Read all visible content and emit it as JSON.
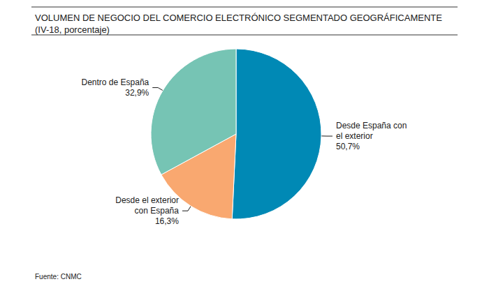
{
  "chart_data": {
    "type": "pie",
    "title": "VOLUMEN DE NEGOCIO DEL COMERCIO ELECTRÓNICO SEGMENTADO GEOGRÁFICAMENTE (IV-18, porcentaje)",
    "source": "Fuente: CNMC",
    "categories": [
      "Desde España con el exterior",
      "Desde el exterior con España",
      "Dentro de España"
    ],
    "values": [
      50.7,
      16.3,
      32.9
    ],
    "value_labels": [
      "50,7%",
      "16,3%",
      "32,9%"
    ],
    "colors": [
      "#0089b5",
      "#f9a870",
      "#76c4b4"
    ],
    "data_labels": true
  }
}
